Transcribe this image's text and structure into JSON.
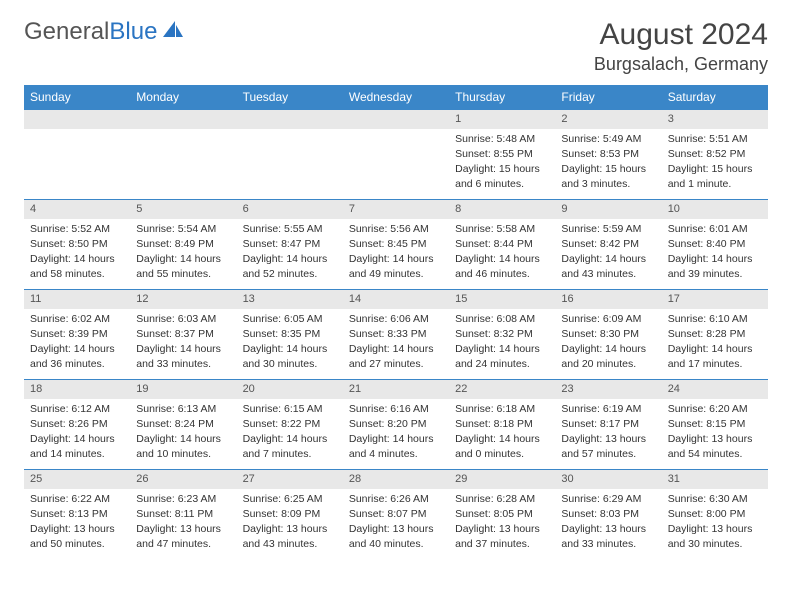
{
  "logo": {
    "text1": "General",
    "text2": "Blue"
  },
  "title": "August 2024",
  "location": "Burgsalach, Germany",
  "colors": {
    "header_bg": "#3a86c8",
    "header_text": "#ffffff",
    "daynum_bg": "#e8e8e8",
    "cell_border": "#3a86c8",
    "body_text": "#333333",
    "logo_gray": "#555555",
    "logo_blue": "#2a74c2",
    "background": "#ffffff"
  },
  "typography": {
    "title_fontsize": 30,
    "location_fontsize": 18,
    "header_fontsize": 12,
    "cell_fontsize": 10.5
  },
  "day_headers": [
    "Sunday",
    "Monday",
    "Tuesday",
    "Wednesday",
    "Thursday",
    "Friday",
    "Saturday"
  ],
  "weeks": [
    [
      {
        "blank": true
      },
      {
        "blank": true
      },
      {
        "blank": true
      },
      {
        "blank": true
      },
      {
        "n": "1",
        "sr": "Sunrise: 5:48 AM",
        "ss": "Sunset: 8:55 PM",
        "d1": "Daylight: 15 hours",
        "d2": "and 6 minutes."
      },
      {
        "n": "2",
        "sr": "Sunrise: 5:49 AM",
        "ss": "Sunset: 8:53 PM",
        "d1": "Daylight: 15 hours",
        "d2": "and 3 minutes."
      },
      {
        "n": "3",
        "sr": "Sunrise: 5:51 AM",
        "ss": "Sunset: 8:52 PM",
        "d1": "Daylight: 15 hours",
        "d2": "and 1 minute."
      }
    ],
    [
      {
        "n": "4",
        "sr": "Sunrise: 5:52 AM",
        "ss": "Sunset: 8:50 PM",
        "d1": "Daylight: 14 hours",
        "d2": "and 58 minutes."
      },
      {
        "n": "5",
        "sr": "Sunrise: 5:54 AM",
        "ss": "Sunset: 8:49 PM",
        "d1": "Daylight: 14 hours",
        "d2": "and 55 minutes."
      },
      {
        "n": "6",
        "sr": "Sunrise: 5:55 AM",
        "ss": "Sunset: 8:47 PM",
        "d1": "Daylight: 14 hours",
        "d2": "and 52 minutes."
      },
      {
        "n": "7",
        "sr": "Sunrise: 5:56 AM",
        "ss": "Sunset: 8:45 PM",
        "d1": "Daylight: 14 hours",
        "d2": "and 49 minutes."
      },
      {
        "n": "8",
        "sr": "Sunrise: 5:58 AM",
        "ss": "Sunset: 8:44 PM",
        "d1": "Daylight: 14 hours",
        "d2": "and 46 minutes."
      },
      {
        "n": "9",
        "sr": "Sunrise: 5:59 AM",
        "ss": "Sunset: 8:42 PM",
        "d1": "Daylight: 14 hours",
        "d2": "and 43 minutes."
      },
      {
        "n": "10",
        "sr": "Sunrise: 6:01 AM",
        "ss": "Sunset: 8:40 PM",
        "d1": "Daylight: 14 hours",
        "d2": "and 39 minutes."
      }
    ],
    [
      {
        "n": "11",
        "sr": "Sunrise: 6:02 AM",
        "ss": "Sunset: 8:39 PM",
        "d1": "Daylight: 14 hours",
        "d2": "and 36 minutes."
      },
      {
        "n": "12",
        "sr": "Sunrise: 6:03 AM",
        "ss": "Sunset: 8:37 PM",
        "d1": "Daylight: 14 hours",
        "d2": "and 33 minutes."
      },
      {
        "n": "13",
        "sr": "Sunrise: 6:05 AM",
        "ss": "Sunset: 8:35 PM",
        "d1": "Daylight: 14 hours",
        "d2": "and 30 minutes."
      },
      {
        "n": "14",
        "sr": "Sunrise: 6:06 AM",
        "ss": "Sunset: 8:33 PM",
        "d1": "Daylight: 14 hours",
        "d2": "and 27 minutes."
      },
      {
        "n": "15",
        "sr": "Sunrise: 6:08 AM",
        "ss": "Sunset: 8:32 PM",
        "d1": "Daylight: 14 hours",
        "d2": "and 24 minutes."
      },
      {
        "n": "16",
        "sr": "Sunrise: 6:09 AM",
        "ss": "Sunset: 8:30 PM",
        "d1": "Daylight: 14 hours",
        "d2": "and 20 minutes."
      },
      {
        "n": "17",
        "sr": "Sunrise: 6:10 AM",
        "ss": "Sunset: 8:28 PM",
        "d1": "Daylight: 14 hours",
        "d2": "and 17 minutes."
      }
    ],
    [
      {
        "n": "18",
        "sr": "Sunrise: 6:12 AM",
        "ss": "Sunset: 8:26 PM",
        "d1": "Daylight: 14 hours",
        "d2": "and 14 minutes."
      },
      {
        "n": "19",
        "sr": "Sunrise: 6:13 AM",
        "ss": "Sunset: 8:24 PM",
        "d1": "Daylight: 14 hours",
        "d2": "and 10 minutes."
      },
      {
        "n": "20",
        "sr": "Sunrise: 6:15 AM",
        "ss": "Sunset: 8:22 PM",
        "d1": "Daylight: 14 hours",
        "d2": "and 7 minutes."
      },
      {
        "n": "21",
        "sr": "Sunrise: 6:16 AM",
        "ss": "Sunset: 8:20 PM",
        "d1": "Daylight: 14 hours",
        "d2": "and 4 minutes."
      },
      {
        "n": "22",
        "sr": "Sunrise: 6:18 AM",
        "ss": "Sunset: 8:18 PM",
        "d1": "Daylight: 14 hours",
        "d2": "and 0 minutes."
      },
      {
        "n": "23",
        "sr": "Sunrise: 6:19 AM",
        "ss": "Sunset: 8:17 PM",
        "d1": "Daylight: 13 hours",
        "d2": "and 57 minutes."
      },
      {
        "n": "24",
        "sr": "Sunrise: 6:20 AM",
        "ss": "Sunset: 8:15 PM",
        "d1": "Daylight: 13 hours",
        "d2": "and 54 minutes."
      }
    ],
    [
      {
        "n": "25",
        "sr": "Sunrise: 6:22 AM",
        "ss": "Sunset: 8:13 PM",
        "d1": "Daylight: 13 hours",
        "d2": "and 50 minutes."
      },
      {
        "n": "26",
        "sr": "Sunrise: 6:23 AM",
        "ss": "Sunset: 8:11 PM",
        "d1": "Daylight: 13 hours",
        "d2": "and 47 minutes."
      },
      {
        "n": "27",
        "sr": "Sunrise: 6:25 AM",
        "ss": "Sunset: 8:09 PM",
        "d1": "Daylight: 13 hours",
        "d2": "and 43 minutes."
      },
      {
        "n": "28",
        "sr": "Sunrise: 6:26 AM",
        "ss": "Sunset: 8:07 PM",
        "d1": "Daylight: 13 hours",
        "d2": "and 40 minutes."
      },
      {
        "n": "29",
        "sr": "Sunrise: 6:28 AM",
        "ss": "Sunset: 8:05 PM",
        "d1": "Daylight: 13 hours",
        "d2": "and 37 minutes."
      },
      {
        "n": "30",
        "sr": "Sunrise: 6:29 AM",
        "ss": "Sunset: 8:03 PM",
        "d1": "Daylight: 13 hours",
        "d2": "and 33 minutes."
      },
      {
        "n": "31",
        "sr": "Sunrise: 6:30 AM",
        "ss": "Sunset: 8:00 PM",
        "d1": "Daylight: 13 hours",
        "d2": "and 30 minutes."
      }
    ]
  ]
}
